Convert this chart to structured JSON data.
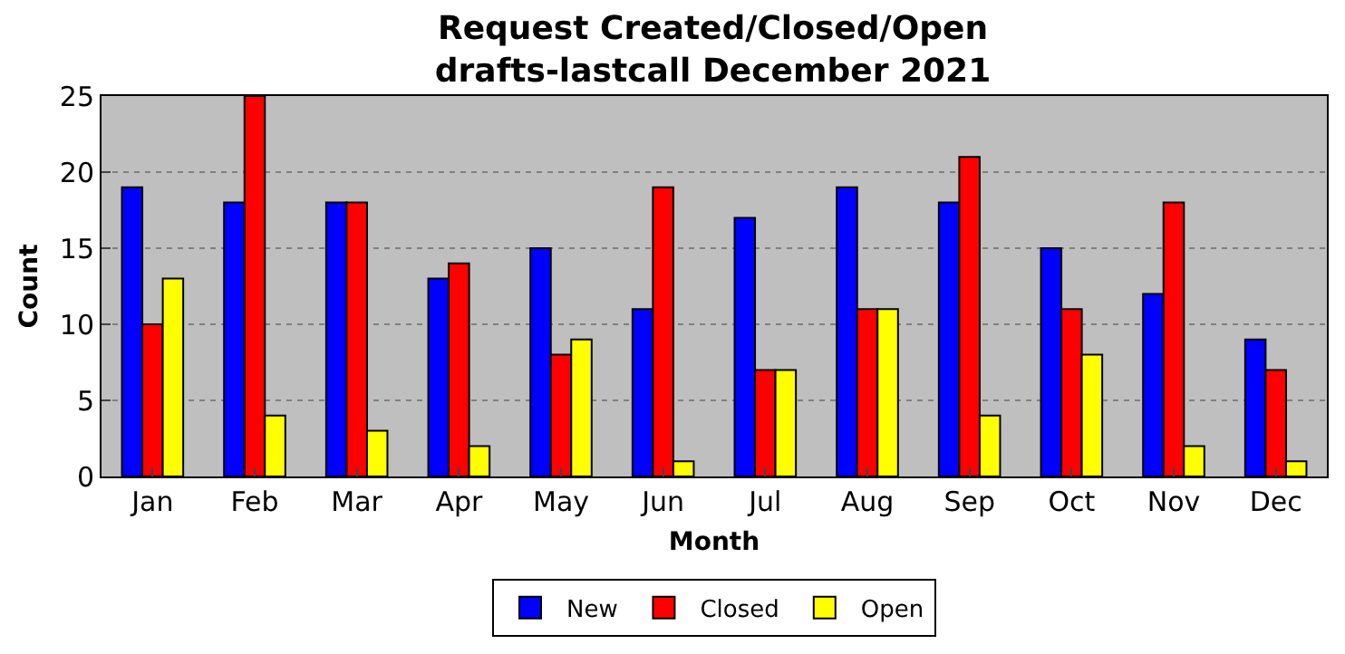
{
  "chart_data": {
    "type": "bar",
    "title": "Request Created/Closed/Open\ndrafts-lastcall December 2021",
    "xlabel": "Month",
    "ylabel": "Count",
    "categories": [
      "Jan",
      "Feb",
      "Mar",
      "Apr",
      "May",
      "Jun",
      "Jul",
      "Aug",
      "Sep",
      "Oct",
      "Nov",
      "Dec"
    ],
    "series": [
      {
        "name": "New",
        "color": "#0000ff",
        "values": [
          19,
          18,
          18,
          13,
          15,
          11,
          17,
          19,
          18,
          15,
          12,
          9
        ]
      },
      {
        "name": "Closed",
        "color": "#ff0000",
        "values": [
          10,
          25,
          18,
          14,
          8,
          19,
          7,
          11,
          21,
          11,
          18,
          7
        ]
      },
      {
        "name": "Open",
        "color": "#ffff00",
        "values": [
          13,
          4,
          3,
          2,
          9,
          1,
          7,
          11,
          4,
          8,
          2,
          1
        ]
      }
    ],
    "ylim": [
      0,
      25
    ],
    "yticks": [
      0,
      5,
      10,
      15,
      20,
      25
    ],
    "grid": "y",
    "legend": "bottom"
  }
}
